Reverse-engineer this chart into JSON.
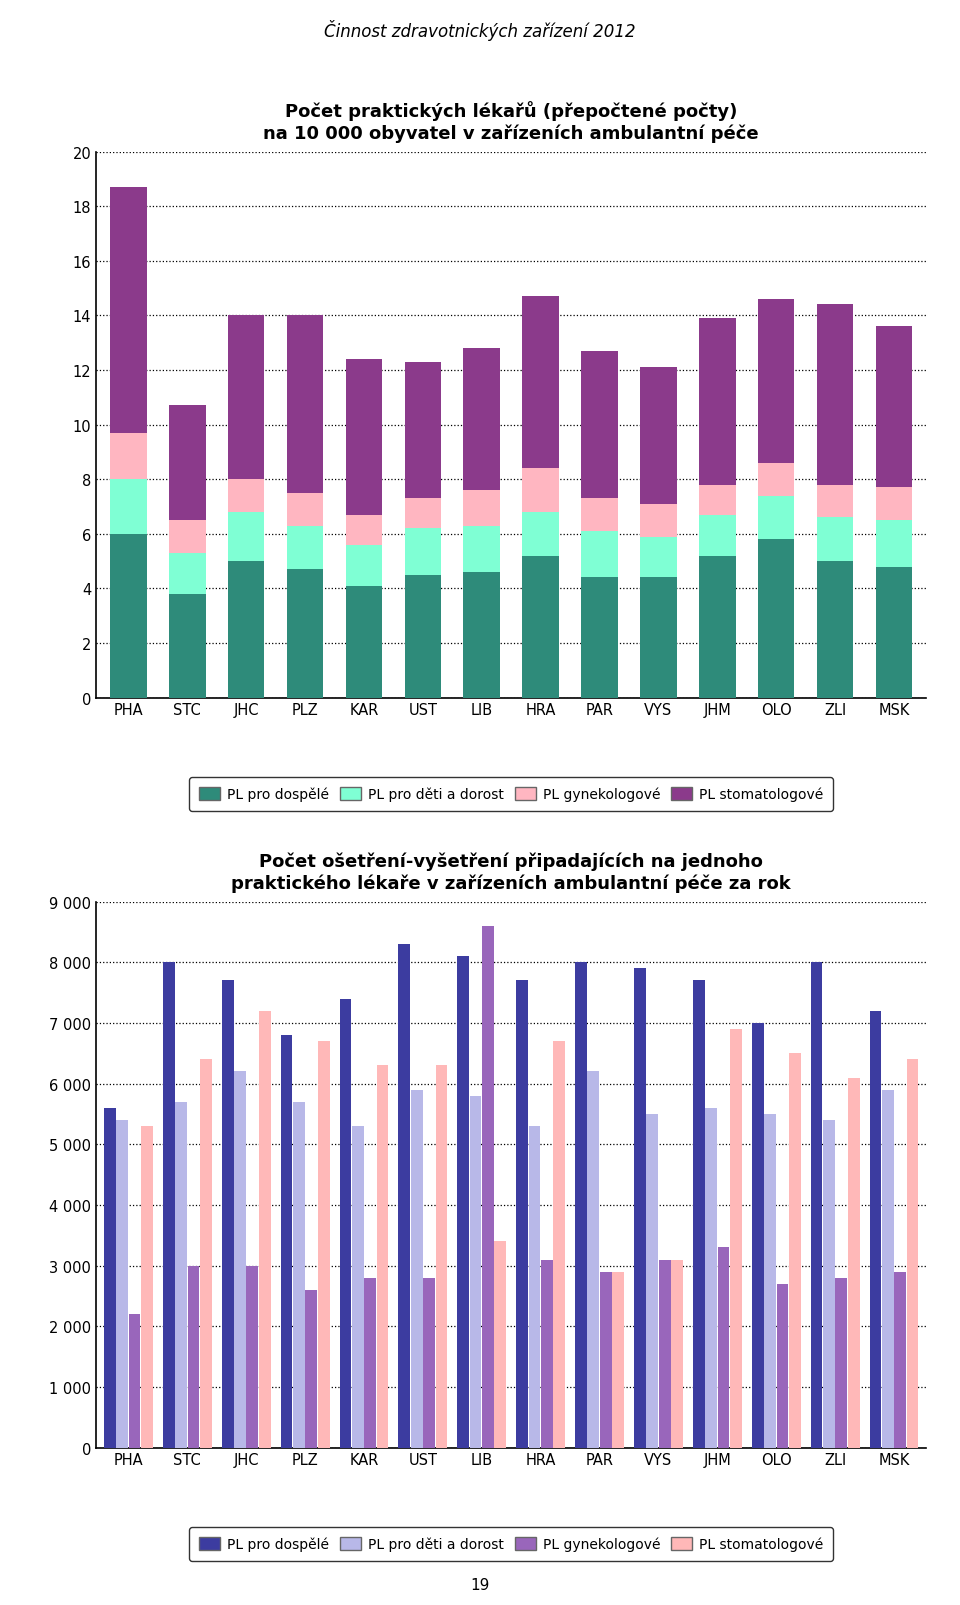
{
  "page_title": "Činnost zdravotnických zařízení 2012",
  "page_number": "19",
  "chart1_title_line1": "Počet praktických lékařů (přepočtené počty)",
  "chart1_title_line2": "na 10 000 obyvatel v zařízeních ambulantní péče",
  "categories": [
    "PHA",
    "STC",
    "JHC",
    "PLZ",
    "KAR",
    "UST",
    "LIB",
    "HRA",
    "PAR",
    "VYS",
    "JHM",
    "OLO",
    "ZLI",
    "MSK"
  ],
  "chart1_dospele": [
    6.0,
    3.8,
    5.0,
    4.7,
    4.1,
    4.5,
    4.6,
    5.2,
    4.4,
    4.4,
    5.2,
    5.8,
    5.0,
    4.8
  ],
  "chart1_deti": [
    2.0,
    1.5,
    1.8,
    1.6,
    1.5,
    1.7,
    1.7,
    1.6,
    1.7,
    1.5,
    1.5,
    1.6,
    1.6,
    1.7
  ],
  "chart1_gyneko": [
    1.7,
    1.2,
    1.2,
    1.2,
    1.1,
    1.1,
    1.3,
    1.6,
    1.2,
    1.2,
    1.1,
    1.2,
    1.2,
    1.2
  ],
  "chart1_stomato": [
    9.0,
    4.2,
    6.0,
    6.5,
    5.7,
    5.0,
    5.2,
    6.3,
    5.4,
    5.0,
    6.1,
    6.0,
    6.6,
    5.9
  ],
  "chart1_ylim": [
    0,
    20
  ],
  "chart1_yticks": [
    0,
    2,
    4,
    6,
    8,
    10,
    12,
    14,
    16,
    18,
    20
  ],
  "c1_dospele": "#2e8b7a",
  "c1_deti": "#7fffd4",
  "c1_gyneko": "#ffb6c1",
  "c1_stomato": "#8b3a8b",
  "chart2_title_line1": "Počet ošetření-vyšetření připadajících na jednoho",
  "chart2_title_line2": "praktického lékaře v zařízeních ambulantní péče za rok",
  "chart2_dospele": [
    5600,
    8000,
    7700,
    6800,
    7400,
    8300,
    8100,
    7700,
    8000,
    7900,
    7700,
    7000,
    8000,
    7200
  ],
  "chart2_deti": [
    5400,
    5700,
    6200,
    5700,
    5300,
    5900,
    5800,
    5300,
    6200,
    5500,
    5600,
    5500,
    5400,
    5900
  ],
  "chart2_gyneko": [
    2200,
    3000,
    3000,
    2600,
    2800,
    2800,
    8600,
    3100,
    2900,
    3100,
    3300,
    2700,
    2800,
    2900
  ],
  "chart2_stomato": [
    5300,
    6400,
    7200,
    6700,
    6300,
    6300,
    3400,
    6700,
    2900,
    3100,
    6900,
    6500,
    6100,
    6400
  ],
  "chart2_ylim": [
    0,
    9000
  ],
  "chart2_yticks": [
    0,
    1000,
    2000,
    3000,
    4000,
    5000,
    6000,
    7000,
    8000,
    9000
  ],
  "c2_dospele": "#3c3ca0",
  "c2_deti": "#b8b8e8",
  "c2_gyneko": "#9966bb",
  "c2_stomato": "#ffb8b8",
  "legend1_labels": [
    "PL pro dospělé",
    "PL pro děti a dorost",
    "PL gynekologové",
    "PL stomatologové"
  ],
  "legend2_labels": [
    "PL pro dospělé",
    "PL pro děti a dorost",
    "PL gynekologové",
    "PL stomatologové"
  ],
  "bg": "#ffffff",
  "fig_width": 9.6,
  "fig_height": 16.06
}
